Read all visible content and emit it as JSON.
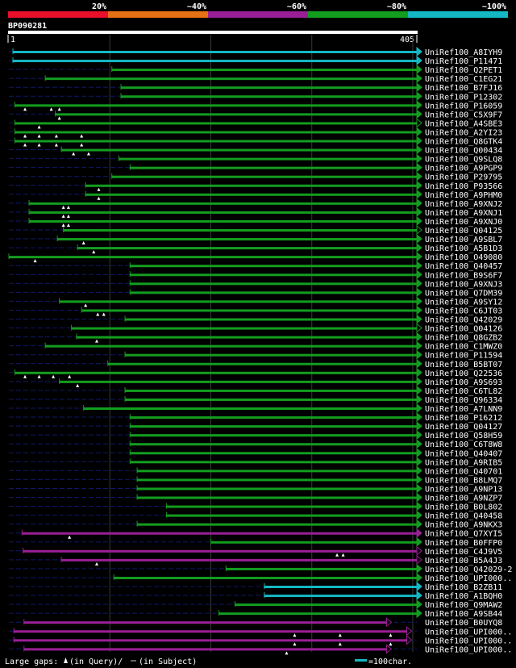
{
  "chart_data": {
    "type": "alignment-overview",
    "query_id": "BP090281",
    "query_start": "1",
    "query_end": "405",
    "query_length": 405,
    "identity_scale": [
      {
        "label": "20%",
        "color": "#e8102a"
      },
      {
        "label": "~40%",
        "color": "#e67016"
      },
      {
        "label": "~60%",
        "color": "#9a1f96"
      },
      {
        "label": "~80%",
        "color": "#139d1f"
      },
      {
        "label": "~100%",
        "color": "#14b8c4"
      }
    ],
    "hits": [
      {
        "id": "UniRef100_A8IYH9",
        "start": 5,
        "end": 405,
        "identity": "~100%",
        "full": true,
        "gaps": []
      },
      {
        "id": "UniRef100_P11471",
        "start": 5,
        "end": 405,
        "identity": "~100%",
        "full": true,
        "gaps": []
      },
      {
        "id": "UniRef100_Q2PET1",
        "start": 103,
        "end": 405,
        "identity": "~80%",
        "full": true,
        "gaps": []
      },
      {
        "id": "UniRef100_C1EG21",
        "start": 37,
        "end": 405,
        "identity": "~80%",
        "full": true,
        "gaps": []
      },
      {
        "id": "UniRef100_B7FJ16",
        "start": 112,
        "end": 405,
        "identity": "~80%",
        "full": true,
        "gaps": []
      },
      {
        "id": "UniRef100_P12302",
        "start": 112,
        "end": 405,
        "identity": "~80%",
        "full": true,
        "gaps": []
      },
      {
        "id": "UniRef100_P16059",
        "start": 7,
        "end": 405,
        "identity": "~80%",
        "full": true,
        "gaps": [
          17,
          43,
          51
        ]
      },
      {
        "id": "UniRef100_C5X9F7",
        "start": 47,
        "end": 405,
        "identity": "~80%",
        "full": true,
        "gaps": [
          51
        ]
      },
      {
        "id": "UniRef100_A4SBE3",
        "start": 7,
        "end": 405,
        "identity": "~80%",
        "full": false,
        "gaps": [
          31
        ]
      },
      {
        "id": "UniRef100_A2YI23",
        "start": 7,
        "end": 405,
        "identity": "~80%",
        "full": true,
        "gaps": [
          17,
          31,
          48,
          73
        ]
      },
      {
        "id": "UniRef100_Q8GTK4",
        "start": 7,
        "end": 405,
        "identity": "~80%",
        "full": true,
        "gaps": [
          17,
          31,
          48,
          73
        ]
      },
      {
        "id": "UniRef100_Q00434",
        "start": 53,
        "end": 405,
        "identity": "~80%",
        "full": true,
        "gaps": [
          65,
          80
        ]
      },
      {
        "id": "UniRef100_Q9SLQ8",
        "start": 110,
        "end": 405,
        "identity": "~80%",
        "full": true,
        "gaps": []
      },
      {
        "id": "UniRef100_A9PGP9",
        "start": 121,
        "end": 405,
        "identity": "~80%",
        "full": true,
        "gaps": []
      },
      {
        "id": "UniRef100_P29795",
        "start": 103,
        "end": 405,
        "identity": "~80%",
        "full": true,
        "gaps": []
      },
      {
        "id": "UniRef100_P93566",
        "start": 77,
        "end": 405,
        "identity": "~80%",
        "full": true,
        "gaps": [
          90
        ]
      },
      {
        "id": "UniRef100_A9PHM0",
        "start": 77,
        "end": 405,
        "identity": "~80%",
        "full": true,
        "gaps": [
          90
        ]
      },
      {
        "id": "UniRef100_A9XNJ2",
        "start": 21,
        "end": 405,
        "identity": "~80%",
        "full": true,
        "gaps": [
          55,
          60
        ]
      },
      {
        "id": "UniRef100_A9XNJ1",
        "start": 21,
        "end": 405,
        "identity": "~80%",
        "full": true,
        "gaps": [
          55,
          60
        ]
      },
      {
        "id": "UniRef100_A9XNJ0",
        "start": 21,
        "end": 405,
        "identity": "~80%",
        "full": true,
        "gaps": [
          55,
          60
        ]
      },
      {
        "id": "UniRef100_Q04125",
        "start": 55,
        "end": 405,
        "identity": "~80%",
        "full": false,
        "gaps": []
      },
      {
        "id": "UniRef100_A9SBL7",
        "start": 49,
        "end": 405,
        "identity": "~80%",
        "full": true,
        "gaps": [
          75
        ]
      },
      {
        "id": "UniRef100_A5B1D3",
        "start": 69,
        "end": 405,
        "identity": "~80%",
        "full": true,
        "gaps": [
          85
        ]
      },
      {
        "id": "UniRef100_O49080",
        "start": 1,
        "end": 405,
        "identity": "~80%",
        "full": true,
        "gaps": [
          27
        ]
      },
      {
        "id": "UniRef100_Q40457",
        "start": 121,
        "end": 405,
        "identity": "~80%",
        "full": true,
        "gaps": []
      },
      {
        "id": "UniRef100_B9S6F7",
        "start": 121,
        "end": 405,
        "identity": "~80%",
        "full": true,
        "gaps": []
      },
      {
        "id": "UniRef100_A9XNJ3",
        "start": 121,
        "end": 405,
        "identity": "~80%",
        "full": true,
        "gaps": []
      },
      {
        "id": "UniRef100_Q7DM39",
        "start": 121,
        "end": 405,
        "identity": "~80%",
        "full": true,
        "gaps": []
      },
      {
        "id": "UniRef100_A9SY12",
        "start": 51,
        "end": 405,
        "identity": "~80%",
        "full": true,
        "gaps": [
          77
        ]
      },
      {
        "id": "UniRef100_C6JT03",
        "start": 73,
        "end": 405,
        "identity": "~80%",
        "full": true,
        "gaps": [
          89,
          95
        ]
      },
      {
        "id": "UniRef100_Q42029",
        "start": 116,
        "end": 405,
        "identity": "~80%",
        "full": true,
        "gaps": []
      },
      {
        "id": "UniRef100_Q04126",
        "start": 63,
        "end": 405,
        "identity": "~80%",
        "full": false,
        "gaps": []
      },
      {
        "id": "UniRef100_Q8GZB2",
        "start": 68,
        "end": 405,
        "identity": "~80%",
        "full": true,
        "gaps": [
          88
        ]
      },
      {
        "id": "UniRef100_C1MWZ0",
        "start": 37,
        "end": 405,
        "identity": "~80%",
        "full": true,
        "gaps": []
      },
      {
        "id": "UniRef100_P11594",
        "start": 116,
        "end": 405,
        "identity": "~80%",
        "full": true,
        "gaps": []
      },
      {
        "id": "UniRef100_B5BT07",
        "start": 99,
        "end": 405,
        "identity": "~80%",
        "full": true,
        "gaps": []
      },
      {
        "id": "UniRef100_Q22536",
        "start": 7,
        "end": 405,
        "identity": "~80%",
        "full": true,
        "gaps": [
          17,
          31,
          45,
          61
        ]
      },
      {
        "id": "UniRef100_A9S693",
        "start": 51,
        "end": 405,
        "identity": "~80%",
        "full": true,
        "gaps": [
          69
        ]
      },
      {
        "id": "UniRef100_C6TL82",
        "start": 116,
        "end": 405,
        "identity": "~80%",
        "full": true,
        "gaps": []
      },
      {
        "id": "UniRef100_Q96334",
        "start": 116,
        "end": 405,
        "identity": "~80%",
        "full": true,
        "gaps": []
      },
      {
        "id": "UniRef100_A7LNN9",
        "start": 75,
        "end": 405,
        "identity": "~80%",
        "full": true,
        "gaps": []
      },
      {
        "id": "UniRef100_P16212",
        "start": 121,
        "end": 405,
        "identity": "~80%",
        "full": true,
        "gaps": []
      },
      {
        "id": "UniRef100_Q04127",
        "start": 121,
        "end": 405,
        "identity": "~80%",
        "full": true,
        "gaps": []
      },
      {
        "id": "UniRef100_Q58H59",
        "start": 121,
        "end": 405,
        "identity": "~80%",
        "full": true,
        "gaps": []
      },
      {
        "id": "UniRef100_C6T8W8",
        "start": 121,
        "end": 405,
        "identity": "~80%",
        "full": true,
        "gaps": []
      },
      {
        "id": "UniRef100_Q40407",
        "start": 121,
        "end": 405,
        "identity": "~80%",
        "full": true,
        "gaps": []
      },
      {
        "id": "UniRef100_A9RIB5",
        "start": 121,
        "end": 405,
        "identity": "~80%",
        "full": true,
        "gaps": []
      },
      {
        "id": "UniRef100_Q40701",
        "start": 128,
        "end": 405,
        "identity": "~80%",
        "full": true,
        "gaps": []
      },
      {
        "id": "UniRef100_B8LMQ7",
        "start": 128,
        "end": 405,
        "identity": "~80%",
        "full": true,
        "gaps": []
      },
      {
        "id": "UniRef100_A9NP13",
        "start": 128,
        "end": 405,
        "identity": "~80%",
        "full": true,
        "gaps": []
      },
      {
        "id": "UniRef100_A9NZP7",
        "start": 128,
        "end": 405,
        "identity": "~80%",
        "full": true,
        "gaps": []
      },
      {
        "id": "UniRef100_B0L802",
        "start": 157,
        "end": 405,
        "identity": "~80%",
        "full": true,
        "gaps": []
      },
      {
        "id": "UniRef100_Q40458",
        "start": 157,
        "end": 405,
        "identity": "~80%",
        "full": true,
        "gaps": []
      },
      {
        "id": "UniRef100_A9NKX3",
        "start": 128,
        "end": 405,
        "identity": "~80%",
        "full": true,
        "gaps": []
      },
      {
        "id": "UniRef100_Q7XYI5",
        "start": 14,
        "end": 405,
        "identity": "~60%",
        "full": true,
        "gaps": [
          61
        ]
      },
      {
        "id": "UniRef100_B0FFP0",
        "start": 201,
        "end": 405,
        "identity": "~80%",
        "full": true,
        "gaps": []
      },
      {
        "id": "UniRef100_C4J9V5",
        "start": 15,
        "end": 405,
        "identity": "~60%",
        "full": false,
        "gaps": [
          326,
          332
        ]
      },
      {
        "id": "UniRef100_B5A4J3",
        "start": 53,
        "end": 405,
        "identity": "~60%",
        "full": false,
        "gaps": [
          88
        ]
      },
      {
        "id": "UniRef100_Q42029-2",
        "start": 216,
        "end": 405,
        "identity": "~80%",
        "full": true,
        "gaps": []
      },
      {
        "id": "UniRef100_UPI000..",
        "start": 105,
        "end": 405,
        "identity": "~80%",
        "full": true,
        "gaps": []
      },
      {
        "id": "UniRef100_B2ZB11",
        "start": 254,
        "end": 405,
        "identity": "~100%",
        "full": true,
        "gaps": []
      },
      {
        "id": "UniRef100_A1BQH0",
        "start": 254,
        "end": 405,
        "identity": "~100%",
        "full": true,
        "gaps": []
      },
      {
        "id": "UniRef100_Q9MAW2",
        "start": 225,
        "end": 405,
        "identity": "~80%",
        "full": true,
        "gaps": []
      },
      {
        "id": "UniRef100_A9SB44",
        "start": 209,
        "end": 405,
        "identity": "~80%",
        "full": true,
        "gaps": []
      },
      {
        "id": "UniRef100_B0UYQ8",
        "start": 16,
        "end": 375,
        "identity": "~60%",
        "full": false,
        "gaps": []
      },
      {
        "id": "UniRef100_UPI000..",
        "start": 6,
        "end": 395,
        "identity": "~60%",
        "full": false,
        "gaps": [
          284,
          329,
          379
        ]
      },
      {
        "id": "UniRef100_UPI000..",
        "start": 6,
        "end": 395,
        "identity": "~60%",
        "full": false,
        "gaps": [
          284,
          329,
          379
        ]
      },
      {
        "id": "UniRef100_UPI000..",
        "start": 16,
        "end": 375,
        "identity": "~60%",
        "full": false,
        "gaps": [
          276
        ]
      }
    ],
    "legend": {
      "gaps_prefix": "Large gaps:",
      "gaps_query": "(in Query)/",
      "gaps_subject": "(in Subject)",
      "scale_text": "=100char."
    }
  }
}
